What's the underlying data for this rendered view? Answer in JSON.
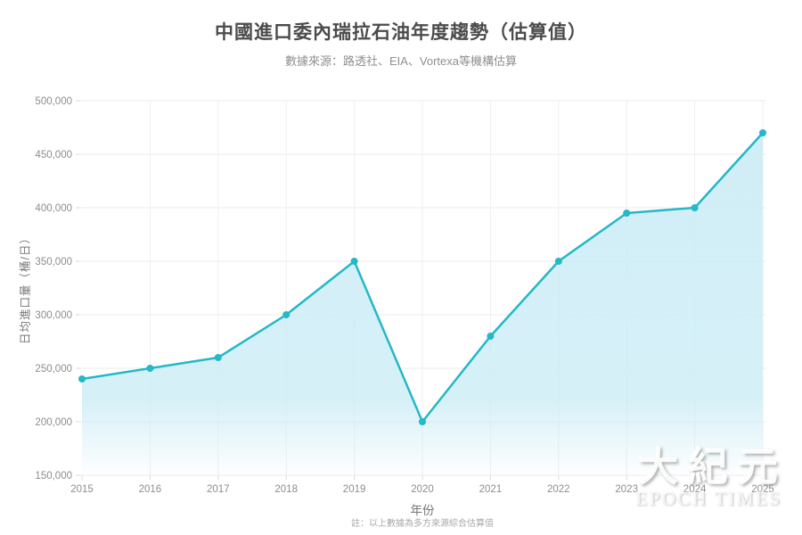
{
  "footnote": "註：以上數據為多方來源綜合估算值",
  "watermark": {
    "name_cn": "大紀元",
    "name_en": "EPOCH TIMES"
  },
  "chart_data": {
    "type": "area",
    "title": "中國進口委內瑞拉石油年度趨勢（估算值）",
    "subtitle": "數據來源：路透社、EIA、Vortexa等機構估算",
    "xlabel": "年份",
    "ylabel": "日均進口量（桶/日）",
    "x": [
      2015,
      2016,
      2017,
      2018,
      2019,
      2020,
      2021,
      2022,
      2023,
      2024,
      2025
    ],
    "values": [
      240000,
      250000,
      260000,
      300000,
      350000,
      200000,
      280000,
      350000,
      395000,
      400000,
      470000
    ],
    "ylim": [
      150000,
      500000
    ],
    "ytick_step": 50000,
    "grid": true,
    "legend": false,
    "colors": {
      "line": "#24b8c8",
      "marker": "#24b8c8",
      "fill": "#cbecf6",
      "grid_h": "#ebebeb",
      "grid_v": "#efefef",
      "tick": "#d8d8d8",
      "tick_text": "#8d8d8d"
    }
  }
}
